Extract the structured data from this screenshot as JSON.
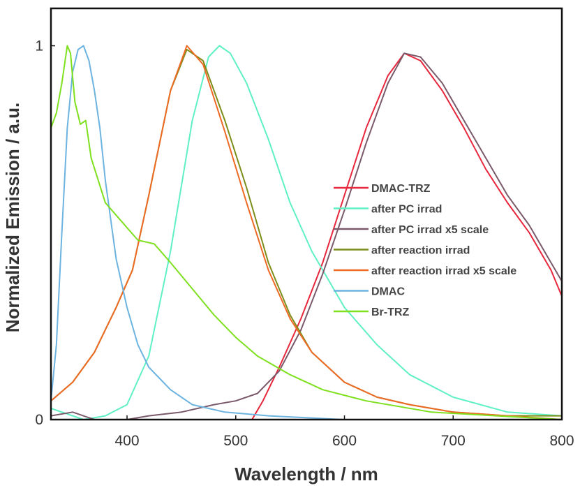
{
  "chart_data": {
    "type": "line",
    "xlabel": "Wavelength / nm",
    "ylabel": "Normalized Emission / a.u.",
    "xlim": [
      330,
      800
    ],
    "ylim": [
      0,
      1.1
    ],
    "xticks": [
      {
        "value": 400,
        "label": "400"
      },
      {
        "value": 500,
        "label": "500"
      },
      {
        "value": 600,
        "label": "600"
      },
      {
        "value": 700,
        "label": "700"
      },
      {
        "value": 800,
        "label": "800"
      }
    ],
    "yticks": [
      {
        "value": 0,
        "label": "0"
      },
      {
        "value": 1,
        "label": "1"
      }
    ],
    "legend_position": "center-right",
    "grid": false,
    "series": [
      {
        "name": "DMAC-TRZ",
        "color": "#e8263c",
        "x": [
          515,
          525,
          540,
          560,
          580,
          600,
          620,
          640,
          655,
          670,
          690,
          710,
          730,
          750,
          770,
          790,
          800
        ],
        "y": [
          0.0,
          0.05,
          0.14,
          0.27,
          0.42,
          0.6,
          0.78,
          0.92,
          0.98,
          0.96,
          0.88,
          0.78,
          0.67,
          0.58,
          0.5,
          0.4,
          0.33
        ]
      },
      {
        "name": "after PC irrad",
        "color": "#5ff0c4",
        "x": [
          330,
          360,
          380,
          400,
          420,
          440,
          460,
          475,
          485,
          495,
          510,
          530,
          550,
          570,
          600,
          630,
          660,
          700,
          750,
          800
        ],
        "y": [
          0.03,
          0.0,
          0.01,
          0.04,
          0.17,
          0.45,
          0.8,
          0.97,
          1.0,
          0.98,
          0.9,
          0.75,
          0.58,
          0.45,
          0.3,
          0.2,
          0.12,
          0.06,
          0.02,
          0.01
        ]
      },
      {
        "name": "after PC irrad x5 scale",
        "color": "#7a5a6a",
        "x": [
          330,
          350,
          370,
          400,
          420,
          450,
          480,
          500,
          520,
          540,
          560,
          580,
          600,
          620,
          640,
          655,
          670,
          690,
          710,
          730,
          750,
          770,
          790,
          800
        ],
        "y": [
          0.01,
          0.02,
          0.0,
          0.0,
          0.01,
          0.02,
          0.04,
          0.05,
          0.07,
          0.13,
          0.24,
          0.39,
          0.56,
          0.74,
          0.9,
          0.98,
          0.97,
          0.9,
          0.8,
          0.7,
          0.6,
          0.52,
          0.42,
          0.37
        ]
      },
      {
        "name": "after reaction irrad",
        "color": "#7d8d1a",
        "x": [
          330,
          350,
          370,
          390,
          405,
          420,
          440,
          455,
          470,
          490,
          510,
          530,
          550,
          570,
          600,
          630,
          660,
          700,
          750,
          800
        ],
        "y": [
          0.05,
          0.1,
          0.18,
          0.3,
          0.4,
          0.6,
          0.88,
          0.99,
          0.96,
          0.8,
          0.62,
          0.42,
          0.28,
          0.18,
          0.1,
          0.06,
          0.04,
          0.02,
          0.01,
          0.01
        ]
      },
      {
        "name": "after reaction irrad x5 scale",
        "color": "#ee6a24",
        "x": [
          330,
          350,
          370,
          390,
          405,
          420,
          440,
          455,
          470,
          490,
          510,
          530,
          550,
          570,
          600,
          630,
          660,
          700,
          750,
          800
        ],
        "y": [
          0.05,
          0.1,
          0.18,
          0.3,
          0.4,
          0.6,
          0.88,
          1.0,
          0.95,
          0.77,
          0.58,
          0.4,
          0.27,
          0.18,
          0.1,
          0.06,
          0.04,
          0.02,
          0.01,
          0.0
        ]
      },
      {
        "name": "DMAC",
        "color": "#6cb3e0",
        "x": [
          330,
          335,
          340,
          345,
          350,
          355,
          360,
          365,
          370,
          375,
          380,
          390,
          400,
          410,
          420,
          440,
          460,
          490,
          530,
          600,
          800
        ],
        "y": [
          0.05,
          0.2,
          0.5,
          0.78,
          0.93,
          0.99,
          1.0,
          0.96,
          0.88,
          0.78,
          0.64,
          0.43,
          0.3,
          0.2,
          0.14,
          0.08,
          0.04,
          0.02,
          0.01,
          0.0,
          0.0
        ]
      },
      {
        "name": "Br-TRZ",
        "color": "#7ee01e",
        "x": [
          330,
          335,
          340,
          345,
          348,
          352,
          357,
          362,
          367,
          380,
          395,
          410,
          425,
          440,
          460,
          480,
          500,
          520,
          550,
          580,
          620,
          680,
          740,
          800
        ],
        "y": [
          0.78,
          0.82,
          0.9,
          1.0,
          0.98,
          0.85,
          0.79,
          0.8,
          0.7,
          0.58,
          0.53,
          0.48,
          0.47,
          0.42,
          0.35,
          0.28,
          0.22,
          0.17,
          0.12,
          0.08,
          0.05,
          0.02,
          0.01,
          0.0
        ]
      }
    ]
  }
}
